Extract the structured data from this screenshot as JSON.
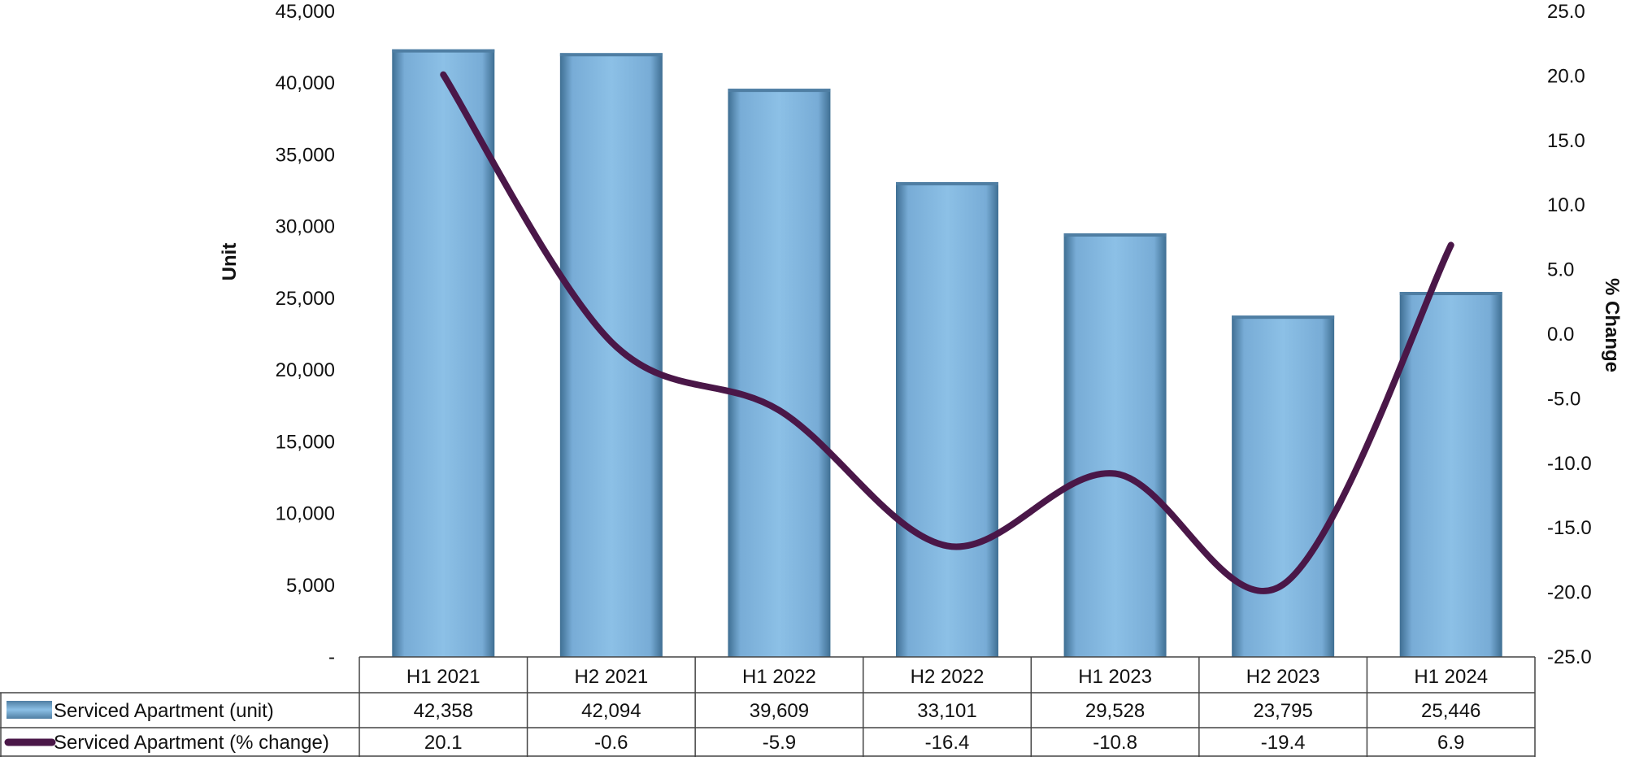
{
  "chart_data": {
    "type": "bar",
    "categories": [
      "H1 2021",
      "H2 2021",
      "H1 2022",
      "H2 2022",
      "H1 2023",
      "H2 2023",
      "H1 2024"
    ],
    "series": [
      {
        "name": "Serviced Apartment (unit)",
        "type": "bar",
        "axis": "left",
        "values": [
          42358,
          42094,
          39609,
          33101,
          29528,
          23795,
          25446
        ],
        "labels": [
          "42,358",
          "42,094",
          "39,609",
          "33,101",
          "29,528",
          "23,795",
          "25,446"
        ]
      },
      {
        "name": "Serviced Apartment (% change)",
        "type": "line",
        "axis": "right",
        "values": [
          20.1,
          -0.6,
          -5.9,
          -16.4,
          -10.8,
          -19.4,
          6.9
        ],
        "labels": [
          "20.1",
          "-0.6",
          "-5.9",
          "-16.4",
          "-10.8",
          "-19.4",
          "6.9"
        ]
      }
    ],
    "ylabel": "Unit",
    "y2label": "% Change",
    "ylim": [
      0,
      45000
    ],
    "y2lim": [
      -25,
      25
    ],
    "yticks": [
      "-",
      "5,000",
      "10,000",
      "15,000",
      "20,000",
      "25,000",
      "30,000",
      "35,000",
      "40,000",
      "45,000"
    ],
    "y2ticks": [
      "-25.0",
      "-20.0",
      "-15.0",
      "-10.0",
      "-5.0",
      "0.0",
      "5.0",
      "10.0",
      "15.0",
      "20.0",
      "25.0"
    ],
    "data_table": true,
    "grid": false,
    "colors": {
      "bar": "#7fb3dd",
      "bar_edge": "#4f7ea3",
      "line": "#4a1748"
    }
  }
}
